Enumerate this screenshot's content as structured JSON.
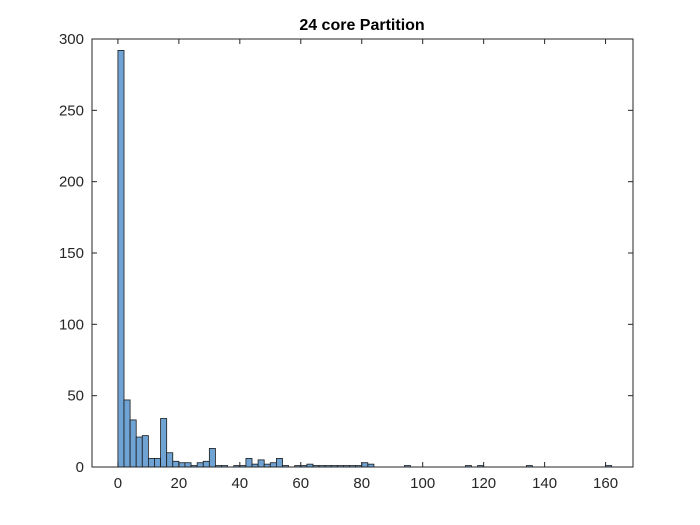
{
  "chart_data": {
    "type": "bar",
    "title": "24 core Partition",
    "xlabel": "",
    "ylabel": "",
    "xlim": [
      -8.5,
      169
    ],
    "ylim": [
      0,
      300
    ],
    "xticks": [
      0,
      20,
      40,
      60,
      80,
      100,
      120,
      140,
      160
    ],
    "yticks": [
      0,
      50,
      100,
      150,
      200,
      250,
      300
    ],
    "bin_width": 2,
    "bar_color": "#6fa3d4",
    "edge_color": "#1a1a1a",
    "grid": false,
    "bins": [
      {
        "x": 0,
        "y": 292
      },
      {
        "x": 2,
        "y": 47
      },
      {
        "x": 4,
        "y": 33
      },
      {
        "x": 6,
        "y": 21
      },
      {
        "x": 8,
        "y": 22
      },
      {
        "x": 10,
        "y": 6
      },
      {
        "x": 12,
        "y": 6
      },
      {
        "x": 14,
        "y": 34
      },
      {
        "x": 16,
        "y": 10
      },
      {
        "x": 18,
        "y": 4
      },
      {
        "x": 20,
        "y": 3
      },
      {
        "x": 22,
        "y": 3
      },
      {
        "x": 24,
        "y": 1
      },
      {
        "x": 26,
        "y": 3
      },
      {
        "x": 28,
        "y": 4
      },
      {
        "x": 30,
        "y": 13
      },
      {
        "x": 32,
        "y": 1
      },
      {
        "x": 34,
        "y": 1
      },
      {
        "x": 36,
        "y": 0
      },
      {
        "x": 38,
        "y": 1
      },
      {
        "x": 40,
        "y": 1
      },
      {
        "x": 42,
        "y": 6
      },
      {
        "x": 44,
        "y": 2
      },
      {
        "x": 46,
        "y": 5
      },
      {
        "x": 48,
        "y": 2
      },
      {
        "x": 50,
        "y": 3
      },
      {
        "x": 52,
        "y": 6
      },
      {
        "x": 54,
        "y": 1
      },
      {
        "x": 56,
        "y": 0
      },
      {
        "x": 58,
        "y": 1
      },
      {
        "x": 60,
        "y": 1
      },
      {
        "x": 62,
        "y": 2
      },
      {
        "x": 64,
        "y": 1
      },
      {
        "x": 66,
        "y": 1
      },
      {
        "x": 68,
        "y": 1
      },
      {
        "x": 70,
        "y": 1
      },
      {
        "x": 72,
        "y": 1
      },
      {
        "x": 74,
        "y": 1
      },
      {
        "x": 76,
        "y": 1
      },
      {
        "x": 78,
        "y": 1
      },
      {
        "x": 80,
        "y": 3
      },
      {
        "x": 82,
        "y": 2
      },
      {
        "x": 94,
        "y": 1
      },
      {
        "x": 114,
        "y": 1
      },
      {
        "x": 118,
        "y": 1
      },
      {
        "x": 134,
        "y": 1
      },
      {
        "x": 160,
        "y": 1
      }
    ]
  }
}
